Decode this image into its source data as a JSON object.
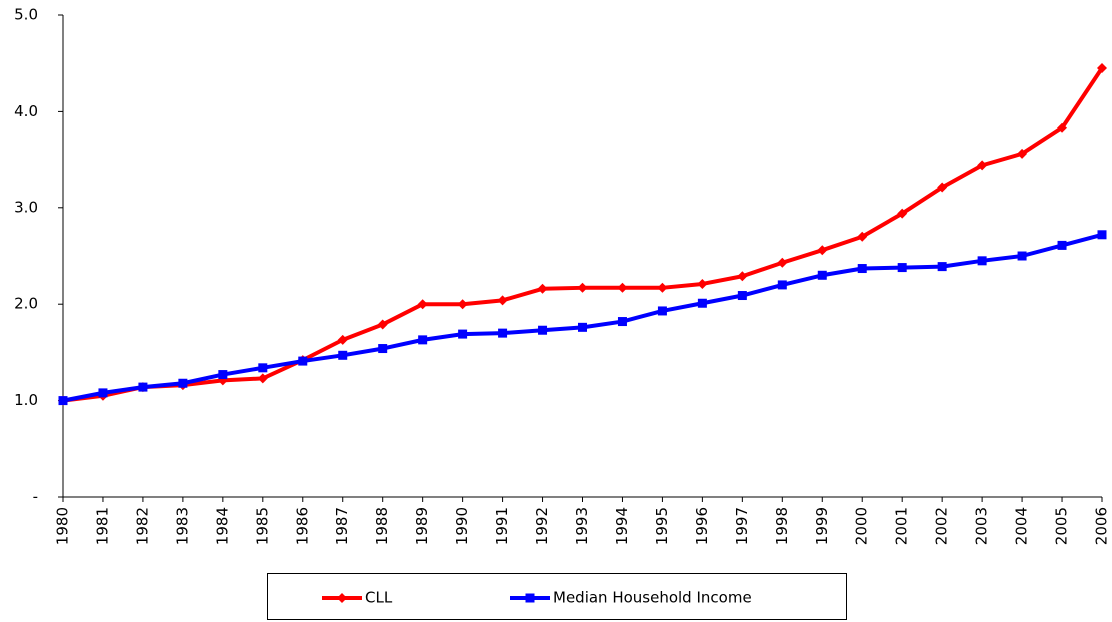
{
  "chart_data": {
    "type": "line",
    "categories": [
      "1980",
      "1981",
      "1982",
      "1983",
      "1984",
      "1985",
      "1986",
      "1987",
      "1988",
      "1989",
      "1990",
      "1991",
      "1992",
      "1993",
      "1994",
      "1995",
      "1996",
      "1997",
      "1998",
      "1999",
      "2000",
      "2001",
      "2002",
      "2003",
      "2004",
      "2005",
      "2006"
    ],
    "series": [
      {
        "name": "CLL",
        "color": "#ff0000",
        "marker": "diamond",
        "values": [
          1.0,
          1.05,
          1.14,
          1.16,
          1.21,
          1.23,
          1.42,
          1.63,
          1.79,
          2.0,
          2.0,
          2.04,
          2.16,
          2.17,
          2.17,
          2.17,
          2.21,
          2.29,
          2.43,
          2.56,
          2.7,
          2.94,
          3.21,
          3.44,
          3.56,
          3.83,
          4.45
        ]
      },
      {
        "name": "Median Household Income",
        "color": "#0000ff",
        "marker": "square",
        "values": [
          1.0,
          1.08,
          1.14,
          1.18,
          1.27,
          1.34,
          1.41,
          1.47,
          1.54,
          1.63,
          1.69,
          1.7,
          1.73,
          1.76,
          1.82,
          1.93,
          2.01,
          2.09,
          2.2,
          2.3,
          2.37,
          2.38,
          2.39,
          2.45,
          2.5,
          2.61,
          2.72
        ]
      }
    ],
    "ylim": [
      0,
      5
    ],
    "yticks": [
      {
        "value": 0,
        "label": "-"
      },
      {
        "value": 1,
        "label": "1.0"
      },
      {
        "value": 2,
        "label": "2.0"
      },
      {
        "value": 3,
        "label": "3.0"
      },
      {
        "value": 4,
        "label": "4.0"
      },
      {
        "value": 5,
        "label": "5.0"
      }
    ],
    "grid": false,
    "legend": "bottom"
  }
}
